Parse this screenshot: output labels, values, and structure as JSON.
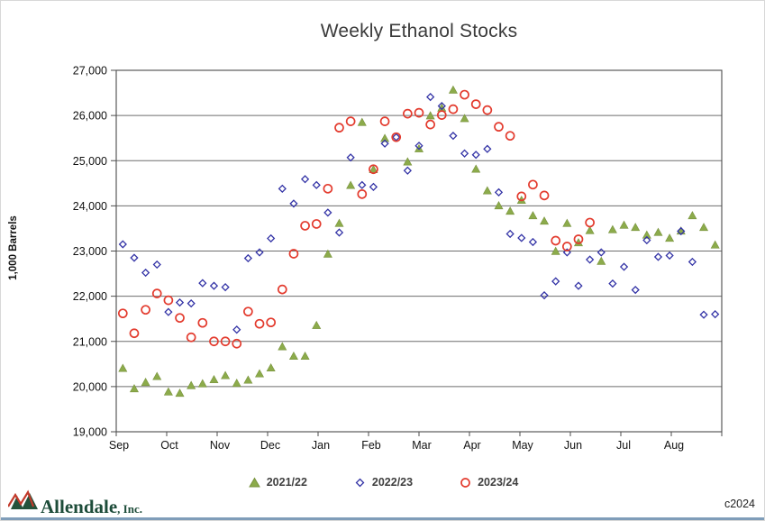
{
  "title": "Weekly Ethanol Stocks",
  "footer": {
    "logo_text": "Allendale",
    "logo_suffix": ", Inc.",
    "copyright": "c2024"
  },
  "chart_data": {
    "type": "scatter",
    "title": "Weekly Ethanol Stocks",
    "xlabel": "",
    "ylabel": "1,000 Barrels",
    "ylim": [
      19000,
      27000
    ],
    "ytick_step": 1000,
    "x_months": [
      "Sep",
      "Oct",
      "Nov",
      "Dec",
      "Jan",
      "Feb",
      "Mar",
      "Apr",
      "May",
      "Jun",
      "Jul",
      "Aug"
    ],
    "grid": "horizontal",
    "legend_position": "bottom",
    "note": "weekly values in thousand barrels, plotted Sep through Aug; null = point hidden by overlapping markers",
    "series": [
      {
        "name": "2021/22",
        "marker": "triangle",
        "color": "#8cab4b",
        "values": [
          20400,
          19950,
          20090,
          20220,
          19880,
          19850,
          20020,
          20060,
          20150,
          20240,
          20070,
          20140,
          20280,
          20410,
          20880,
          20670,
          20670,
          21350,
          22930,
          23610,
          24450,
          25845,
          24800,
          25490,
          null,
          24970,
          25260,
          25990,
          26160,
          26560,
          25930,
          24810,
          24330,
          24000,
          23880,
          24120,
          23780,
          23660,
          22990,
          23610,
          23180,
          23450,
          22770,
          23470,
          23570,
          23520,
          23350,
          23410,
          23280,
          23440,
          23780,
          23520,
          23130
        ]
      },
      {
        "name": "2022/23",
        "marker": "diamond",
        "color": "#3333a6",
        "values": [
          23150,
          22850,
          22520,
          22700,
          21650,
          21860,
          21840,
          22290,
          22230,
          22200,
          21260,
          22840,
          22970,
          23280,
          24380,
          24050,
          24590,
          24460,
          23850,
          23410,
          25070,
          24460,
          24420,
          25380,
          25520,
          24780,
          25330,
          26410,
          26210,
          25550,
          25160,
          25130,
          25260,
          24300,
          23380,
          23290,
          23200,
          22020,
          22330,
          22970,
          22230,
          22810,
          22970,
          22280,
          22650,
          22140,
          23240,
          22870,
          22900,
          23440,
          22760,
          21590,
          21600
        ]
      },
      {
        "name": "2023/24",
        "marker": "circle",
        "color": "#e33b2e",
        "values": [
          21620,
          21180,
          21700,
          22060,
          21910,
          21520,
          21090,
          21410,
          21000,
          21000,
          20950,
          21660,
          21390,
          21420,
          22150,
          22940,
          23560,
          23600,
          24380,
          25730,
          25870,
          24260,
          24810,
          25870,
          25520,
          26040,
          26060,
          25800,
          26010,
          26140,
          26460,
          26250,
          26120,
          25750,
          25550,
          24210,
          24470,
          24230,
          23230,
          23100,
          23260,
          23630
        ]
      }
    ]
  }
}
